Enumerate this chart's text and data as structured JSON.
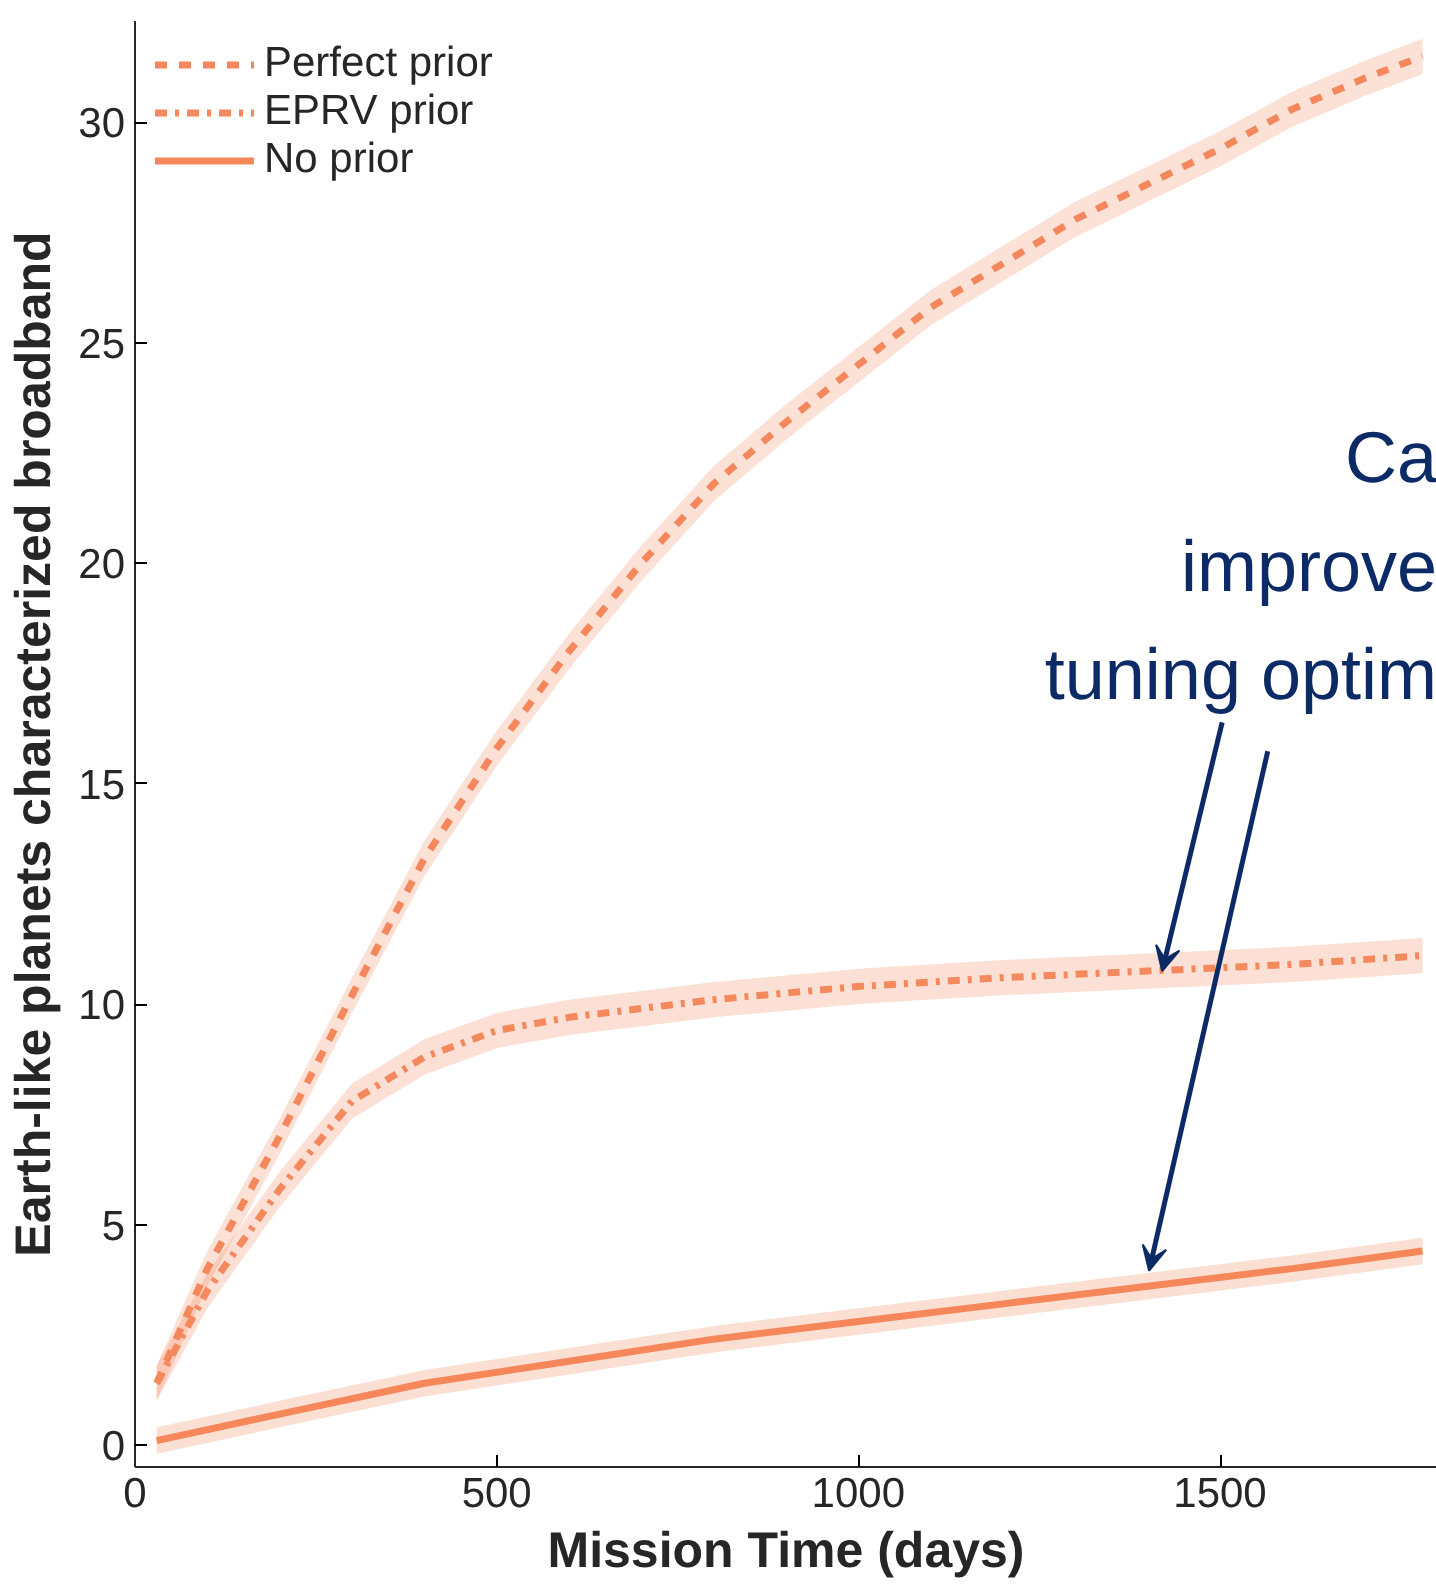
{
  "chart_data": {
    "type": "line",
    "xlabel": "Mission Time (days)",
    "ylabel": "Earth-like planets characterized broadband",
    "xlim": [
      0,
      1800
    ],
    "ylim": [
      -0.5,
      32.3
    ],
    "xticks": [
      0,
      500,
      1000,
      1500
    ],
    "yticks": [
      0,
      5,
      10,
      15,
      20,
      25,
      30
    ],
    "grid": false,
    "legend": "top left",
    "marker": "none",
    "annotations": [
      {
        "text": "Ca\nimprove\ntuning optim",
        "x": 1420,
        "y": 10.75
      }
    ],
    "series": [
      {
        "name": "Perfect prior",
        "color": "#f4885c",
        "line_style": "dashed",
        "x": [
          30,
          100,
          200,
          300,
          400,
          500,
          600,
          700,
          800,
          900,
          1000,
          1100,
          1200,
          1300,
          1400,
          1500,
          1600,
          1700,
          1780
        ],
        "values": [
          1.4,
          4,
          7,
          10.2,
          13.3,
          15.8,
          18,
          20,
          21.8,
          23.2,
          24.5,
          25.8,
          26.8,
          27.8,
          28.6,
          29.4,
          30.3,
          31,
          31.5
        ],
        "lower": [
          1.0,
          3.6,
          6.6,
          9.8,
          12.9,
          15.4,
          17.6,
          19.6,
          21.4,
          22.8,
          24.1,
          25.4,
          26.4,
          27.4,
          28.2,
          29.0,
          29.9,
          30.6,
          31.1
        ],
        "upper": [
          1.8,
          4.4,
          7.4,
          10.6,
          13.7,
          16.2,
          18.4,
          20.4,
          22.2,
          23.6,
          24.9,
          26.2,
          27.2,
          28.2,
          29.0,
          29.8,
          30.7,
          31.4,
          31.9
        ]
      },
      {
        "name": "EPRV prior",
        "color": "#f4895e",
        "line_style": "dashdot",
        "x": [
          30,
          100,
          200,
          300,
          400,
          500,
          600,
          700,
          800,
          1000,
          1200,
          1400,
          1600,
          1780
        ],
        "values": [
          1.4,
          3.5,
          5.8,
          7.8,
          8.8,
          9.4,
          9.7,
          9.9,
          10.1,
          10.4,
          10.6,
          10.75,
          10.9,
          11.1
        ],
        "lower": [
          1.0,
          3.1,
          5.4,
          7.4,
          8.4,
          9.0,
          9.3,
          9.5,
          9.7,
          10.0,
          10.2,
          10.35,
          10.5,
          10.7
        ],
        "upper": [
          1.8,
          3.9,
          6.2,
          8.2,
          9.2,
          9.8,
          10.1,
          10.3,
          10.5,
          10.8,
          11.0,
          11.15,
          11.3,
          11.5
        ]
      },
      {
        "name": "No prior",
        "color": "#f5875b",
        "line_style": "solid",
        "x": [
          30,
          200,
          400,
          600,
          800,
          1000,
          1200,
          1400,
          1600,
          1780
        ],
        "values": [
          0.1,
          0.7,
          1.4,
          1.9,
          2.4,
          2.8,
          3.2,
          3.6,
          4.0,
          4.4
        ],
        "lower": [
          -0.2,
          0.4,
          1.1,
          1.6,
          2.1,
          2.5,
          2.9,
          3.3,
          3.7,
          4.1
        ],
        "upper": [
          0.4,
          1.0,
          1.7,
          2.2,
          2.7,
          3.1,
          3.5,
          3.9,
          4.3,
          4.7
        ]
      }
    ]
  }
}
